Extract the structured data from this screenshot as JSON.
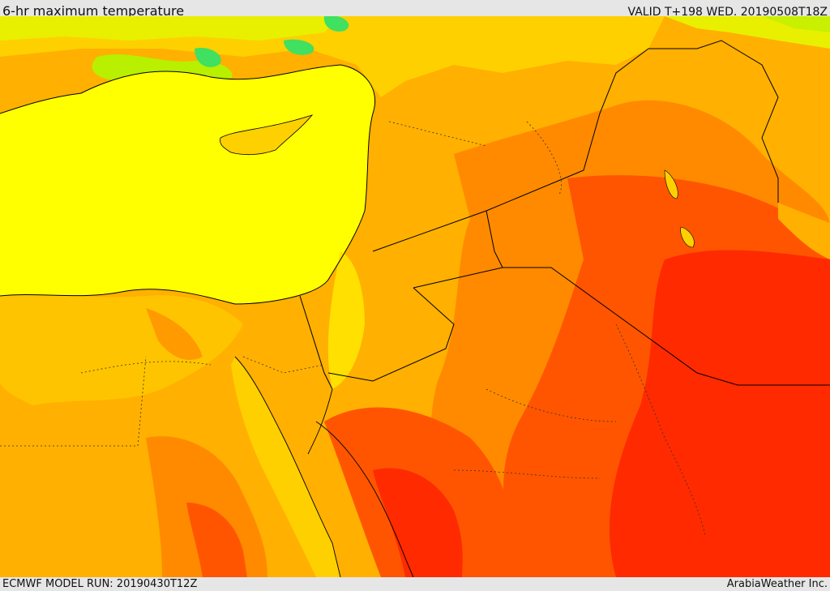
{
  "header": {
    "title": "6-hr maximum temperature",
    "valid": "VALID T+198 WED. 20190508T18Z"
  },
  "footer": {
    "model_run": "ECMWF MODEL RUN: 20190430T12Z",
    "credit": "ArabiaWeather Inc."
  },
  "colors": {
    "sea": "#ffff00",
    "warm_light": "#ffd000",
    "warm": "#ffb000",
    "hot": "#ff8a00",
    "very_hot": "#ff4a00",
    "extreme": "#ff1e00",
    "cool": "#c8f000",
    "cooler": "#40e040",
    "border": "#000000"
  }
}
